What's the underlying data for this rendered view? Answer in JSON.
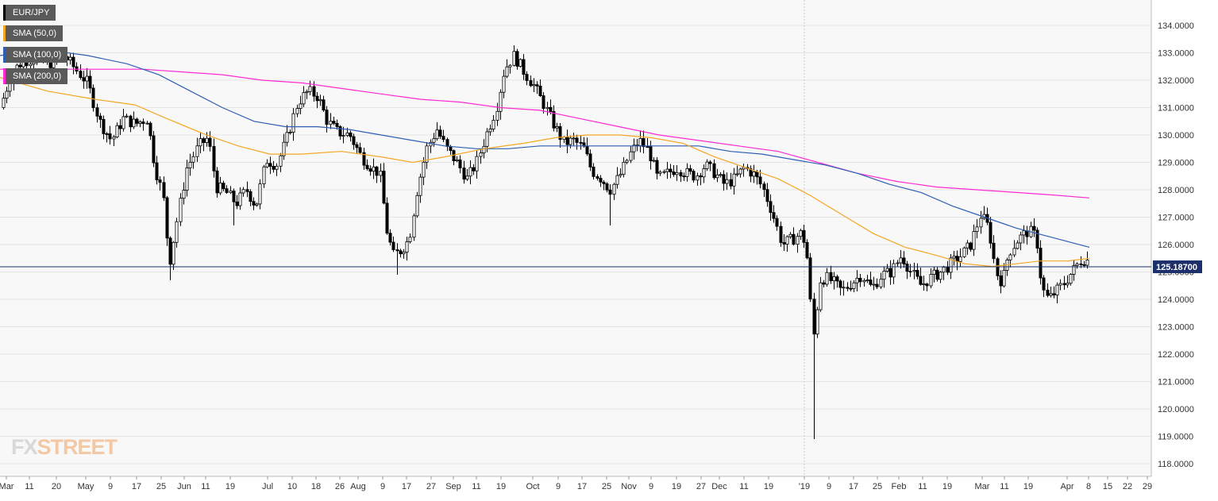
{
  "chart_data": {
    "type": "candlestick",
    "symbol": "EUR/JPY",
    "ylim": [
      117.5,
      134.5
    ],
    "y_ticks": [
      "134.0000",
      "133.0000",
      "132.0000",
      "131.0000",
      "130.0000",
      "129.0000",
      "128.0000",
      "127.0000",
      "126.0000",
      "125.0000",
      "124.0000",
      "123.0000",
      "122.0000",
      "121.0000",
      "120.0000",
      "119.0000",
      "118.0000"
    ],
    "x_ticks": [
      "Mar",
      "11",
      "20",
      "May",
      "9",
      "17",
      "25",
      "Jun",
      "11",
      "19",
      "Jul",
      "10",
      "18",
      "26",
      "Aug",
      "9",
      "17",
      "27",
      "Sep",
      "11",
      "19",
      "Oct",
      "9",
      "17",
      "25",
      "Nov",
      "9",
      "19",
      "27",
      "Dec",
      "11",
      "19",
      "'19",
      "9",
      "17",
      "25",
      "Feb",
      "11",
      "19",
      "Mar",
      "11",
      "19",
      "Apr",
      "8",
      "15",
      "22",
      "29"
    ],
    "current_price": 125.187,
    "current_price_label": "125.18700",
    "legend": [
      {
        "label": "EUR/JPY",
        "color": "#000000"
      },
      {
        "label": "SMA (50,0)",
        "color": "#f5a623"
      },
      {
        "label": "SMA (100,0)",
        "color": "#2e5fb5"
      },
      {
        "label": "SMA (200,0)",
        "color": "#ff2ad4"
      }
    ],
    "anchors": [
      [
        0,
        131.0
      ],
      [
        15,
        132.3
      ],
      [
        28,
        132.7
      ],
      [
        45,
        132.8
      ],
      [
        60,
        132.6
      ],
      [
        80,
        132.9
      ],
      [
        95,
        132.4
      ],
      [
        110,
        131.9
      ],
      [
        125,
        130.5
      ],
      [
        140,
        129.8
      ],
      [
        155,
        130.6
      ],
      [
        170,
        130.4
      ],
      [
        185,
        130.6
      ],
      [
        195,
        128.8
      ],
      [
        205,
        127.8
      ],
      [
        213,
        125.3
      ],
      [
        222,
        126.8
      ],
      [
        235,
        128.8
      ],
      [
        250,
        129.6
      ],
      [
        262,
        129.9
      ],
      [
        272,
        128.1
      ],
      [
        285,
        127.9
      ],
      [
        297,
        127.5
      ],
      [
        310,
        128.0
      ],
      [
        322,
        127.4
      ],
      [
        335,
        129.1
      ],
      [
        348,
        128.9
      ],
      [
        360,
        129.8
      ],
      [
        375,
        131.2
      ],
      [
        388,
        131.6
      ],
      [
        400,
        131.4
      ],
      [
        412,
        130.5
      ],
      [
        425,
        130.1
      ],
      [
        440,
        130.0
      ],
      [
        455,
        129.2
      ],
      [
        468,
        128.8
      ],
      [
        478,
        128.6
      ],
      [
        487,
        126.5
      ],
      [
        495,
        125.6
      ],
      [
        505,
        125.8
      ],
      [
        515,
        126.2
      ],
      [
        525,
        128.0
      ],
      [
        537,
        129.5
      ],
      [
        550,
        130.2
      ],
      [
        562,
        129.5
      ],
      [
        575,
        129.0
      ],
      [
        588,
        128.4
      ],
      [
        600,
        129.0
      ],
      [
        612,
        130.0
      ],
      [
        625,
        131.0
      ],
      [
        635,
        132.4
      ],
      [
        647,
        132.9
      ],
      [
        660,
        132.3
      ],
      [
        672,
        131.8
      ],
      [
        685,
        131.1
      ],
      [
        697,
        130.4
      ],
      [
        710,
        129.7
      ],
      [
        722,
        129.8
      ],
      [
        735,
        129.5
      ],
      [
        745,
        128.7
      ],
      [
        757,
        128.4
      ],
      [
        768,
        128.0
      ],
      [
        780,
        128.5
      ],
      [
        793,
        129.3
      ],
      [
        805,
        129.8
      ],
      [
        817,
        129.4
      ],
      [
        828,
        128.4
      ],
      [
        840,
        128.6
      ],
      [
        852,
        128.8
      ],
      [
        864,
        128.6
      ],
      [
        876,
        128.5
      ],
      [
        888,
        128.9
      ],
      [
        900,
        128.6
      ],
      [
        912,
        128.2
      ],
      [
        925,
        128.4
      ],
      [
        937,
        128.8
      ],
      [
        948,
        128.6
      ],
      [
        960,
        128.1
      ],
      [
        972,
        127.2
      ],
      [
        985,
        126.0
      ],
      [
        998,
        126.2
      ],
      [
        1008,
        126.4
      ],
      [
        1015,
        126.0
      ],
      [
        1020,
        124.0
      ],
      [
        1025,
        122.6
      ],
      [
        1032,
        124.7
      ],
      [
        1040,
        124.8
      ],
      [
        1050,
        124.6
      ],
      [
        1060,
        124.3
      ],
      [
        1072,
        124.6
      ],
      [
        1085,
        124.9
      ],
      [
        1098,
        124.4
      ],
      [
        1110,
        124.9
      ],
      [
        1122,
        125.0
      ],
      [
        1135,
        125.6
      ],
      [
        1147,
        125.0
      ],
      [
        1160,
        124.5
      ],
      [
        1172,
        124.8
      ],
      [
        1185,
        125.0
      ],
      [
        1197,
        125.3
      ],
      [
        1210,
        125.6
      ],
      [
        1222,
        126.0
      ],
      [
        1235,
        127.1
      ],
      [
        1245,
        126.6
      ],
      [
        1254,
        125.0
      ],
      [
        1262,
        124.6
      ],
      [
        1270,
        125.7
      ],
      [
        1282,
        126.2
      ],
      [
        1295,
        126.5
      ],
      [
        1305,
        126.3
      ],
      [
        1312,
        124.4
      ],
      [
        1320,
        124.0
      ],
      [
        1330,
        124.3
      ],
      [
        1340,
        124.6
      ],
      [
        1350,
        125.0
      ],
      [
        1360,
        125.4
      ],
      [
        1368,
        125.5
      ],
      [
        1372,
        125.19
      ]
    ],
    "spikes": [
      [
        213,
        124.7
      ],
      [
        1023,
        118.9
      ],
      [
        770,
        126.7
      ],
      [
        293,
        126.7
      ],
      [
        499,
        124.9
      ]
    ],
    "sma50": [
      [
        0,
        132.1
      ],
      [
        60,
        131.6
      ],
      [
        120,
        131.3
      ],
      [
        170,
        131.1
      ],
      [
        210,
        130.6
      ],
      [
        260,
        130.0
      ],
      [
        300,
        129.6
      ],
      [
        340,
        129.3
      ],
      [
        380,
        129.3
      ],
      [
        430,
        129.4
      ],
      [
        480,
        129.2
      ],
      [
        520,
        129.0
      ],
      [
        560,
        129.2
      ],
      [
        610,
        129.5
      ],
      [
        660,
        129.7
      ],
      [
        700,
        129.9
      ],
      [
        740,
        130.0
      ],
      [
        780,
        130.0
      ],
      [
        820,
        129.9
      ],
      [
        860,
        129.7
      ],
      [
        900,
        129.2
      ],
      [
        940,
        128.8
      ],
      [
        980,
        128.4
      ],
      [
        1020,
        127.8
      ],
      [
        1060,
        127.1
      ],
      [
        1100,
        126.4
      ],
      [
        1140,
        125.9
      ],
      [
        1180,
        125.6
      ],
      [
        1215,
        125.3
      ],
      [
        1250,
        125.2
      ],
      [
        1280,
        125.3
      ],
      [
        1310,
        125.4
      ],
      [
        1345,
        125.4
      ],
      [
        1372,
        125.5
      ]
    ],
    "sma100": [
      [
        0,
        132.9
      ],
      [
        60,
        133.1
      ],
      [
        110,
        132.9
      ],
      [
        160,
        132.6
      ],
      [
        200,
        132.2
      ],
      [
        240,
        131.6
      ],
      [
        280,
        131.0
      ],
      [
        320,
        130.5
      ],
      [
        360,
        130.3
      ],
      [
        400,
        130.3
      ],
      [
        440,
        130.2
      ],
      [
        480,
        130.0
      ],
      [
        520,
        129.8
      ],
      [
        560,
        129.6
      ],
      [
        600,
        129.5
      ],
      [
        640,
        129.5
      ],
      [
        680,
        129.6
      ],
      [
        720,
        129.6
      ],
      [
        760,
        129.6
      ],
      [
        800,
        129.6
      ],
      [
        840,
        129.6
      ],
      [
        880,
        129.6
      ],
      [
        920,
        129.4
      ],
      [
        960,
        129.3
      ],
      [
        1000,
        129.1
      ],
      [
        1040,
        128.9
      ],
      [
        1080,
        128.6
      ],
      [
        1120,
        128.2
      ],
      [
        1160,
        127.9
      ],
      [
        1200,
        127.4
      ],
      [
        1240,
        127.0
      ],
      [
        1280,
        126.6
      ],
      [
        1320,
        126.3
      ],
      [
        1372,
        125.9
      ]
    ],
    "sma200": [
      [
        0,
        132.4
      ],
      [
        60,
        132.4
      ],
      [
        130,
        132.4
      ],
      [
        180,
        132.4
      ],
      [
        230,
        132.3
      ],
      [
        280,
        132.2
      ],
      [
        330,
        132.0
      ],
      [
        380,
        131.9
      ],
      [
        430,
        131.7
      ],
      [
        480,
        131.5
      ],
      [
        530,
        131.3
      ],
      [
        580,
        131.2
      ],
      [
        630,
        131.0
      ],
      [
        680,
        130.9
      ],
      [
        730,
        130.6
      ],
      [
        780,
        130.3
      ],
      [
        830,
        130.0
      ],
      [
        880,
        129.8
      ],
      [
        930,
        129.6
      ],
      [
        980,
        129.4
      ],
      [
        1030,
        129.0
      ],
      [
        1080,
        128.6
      ],
      [
        1130,
        128.3
      ],
      [
        1180,
        128.1
      ],
      [
        1230,
        128.0
      ],
      [
        1280,
        127.9
      ],
      [
        1330,
        127.8
      ],
      [
        1372,
        127.7
      ]
    ]
  },
  "watermark": {
    "part1": "FX",
    "part2": "STREET"
  }
}
